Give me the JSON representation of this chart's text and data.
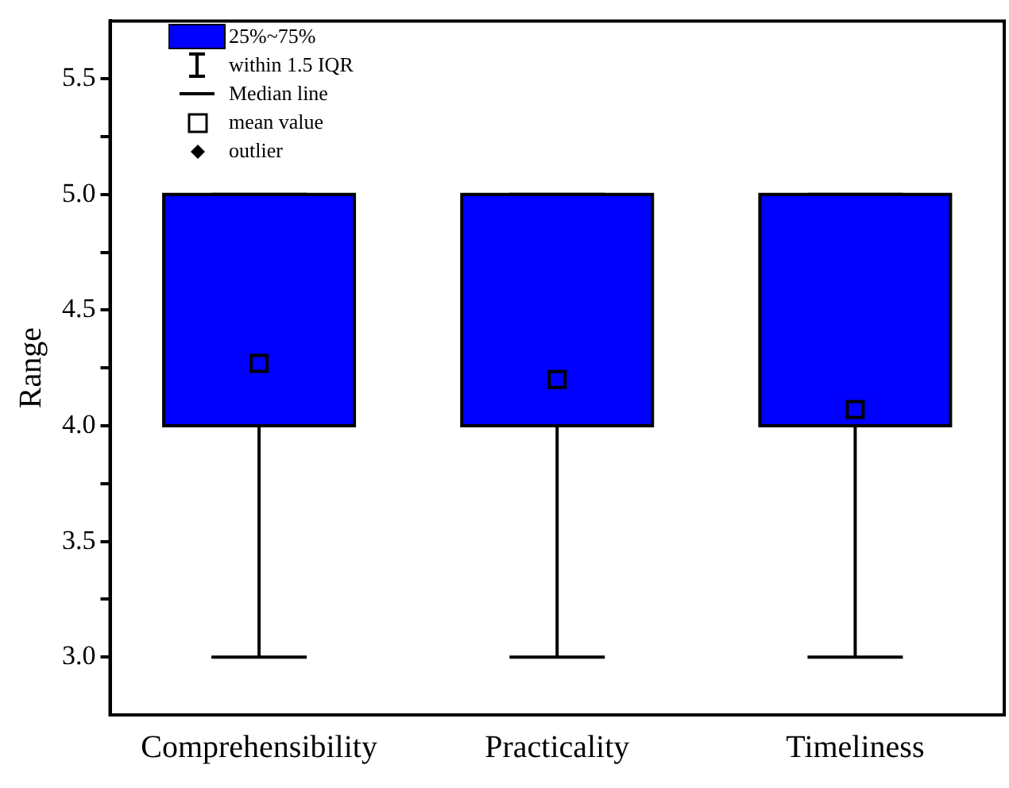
{
  "chart_data": {
    "type": "box",
    "ylabel": "Range",
    "categories": [
      "Comprehensibility",
      "Practicality",
      "Timeliness"
    ],
    "series": [
      {
        "color": "#0000ff",
        "boxes": [
          {
            "low": 3,
            "q1": 4,
            "median": 4,
            "q3": 5,
            "high": 5,
            "mean": 4.27
          },
          {
            "low": 3,
            "q1": 4,
            "median": 4,
            "q3": 5,
            "high": 5,
            "mean": 4.2
          },
          {
            "low": 3,
            "q1": 4,
            "median": 4,
            "q3": 5,
            "high": 5,
            "mean": 4.07
          }
        ]
      }
    ],
    "ylim": [
      2.75,
      5.75
    ],
    "yticks": [
      {
        "value": 3,
        "label": "3.0"
      },
      {
        "value": 3.25,
        "label": null
      },
      {
        "value": 3.5,
        "label": "3.5"
      },
      {
        "value": 3.75,
        "label": null
      },
      {
        "value": 4,
        "label": "4.0"
      },
      {
        "value": 4.25,
        "label": null
      },
      {
        "value": 4.5,
        "label": "4.5"
      },
      {
        "value": 4.75,
        "label": null
      },
      {
        "value": 5,
        "label": "5.0"
      },
      {
        "value": 5.25,
        "label": null
      },
      {
        "value": 5.5,
        "label": "5.5"
      }
    ],
    "annotations": [
      "25%~75%",
      "within 1.5 IQR",
      "Median line",
      "mean value",
      "outlier"
    ],
    "grid": false
  }
}
